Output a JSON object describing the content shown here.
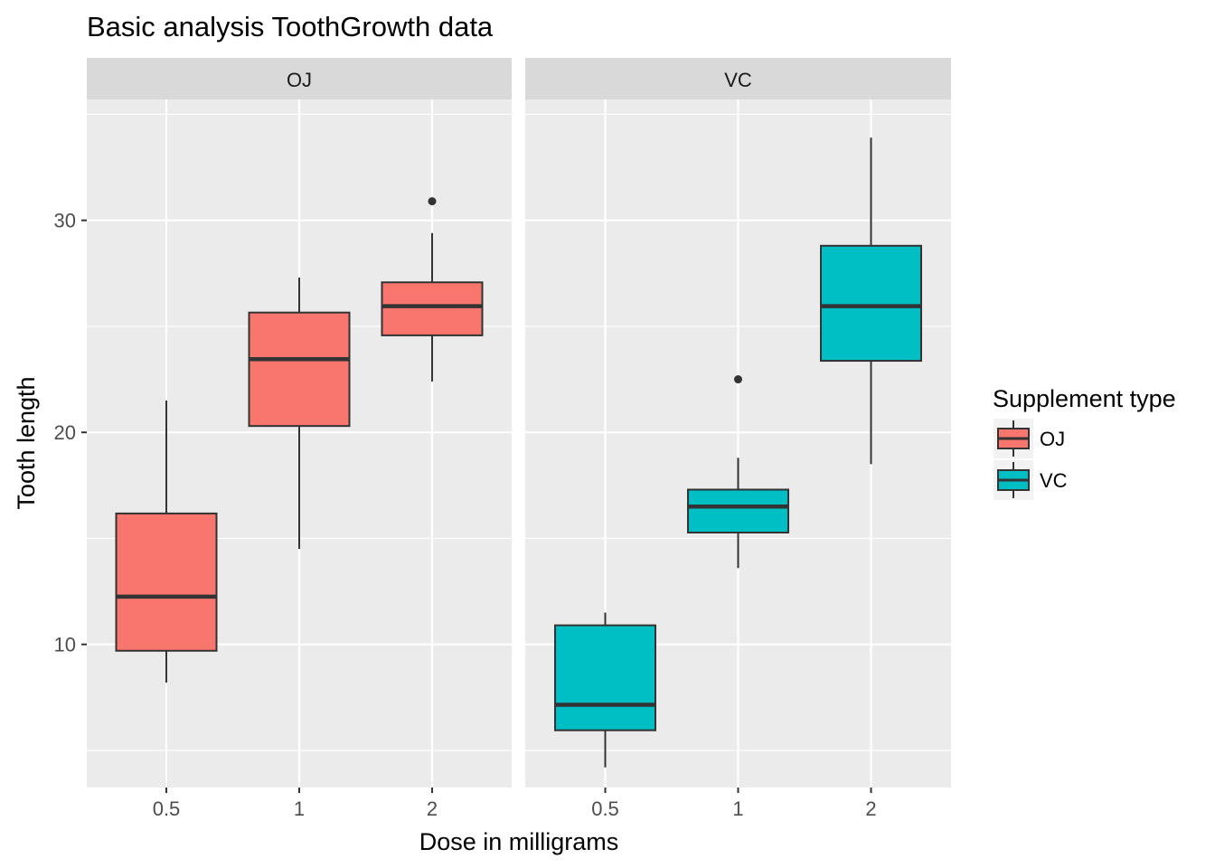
{
  "chart_data": {
    "type": "boxplot",
    "title": "Basic analysis ToothGrowth data",
    "xlabel": "Dose in milligrams",
    "ylabel": "Tooth length",
    "categories": [
      "0.5",
      "1",
      "2"
    ],
    "y_ticks": [
      10,
      20,
      30
    ],
    "ylim": [
      3.25,
      35.7
    ],
    "grid": true,
    "facets": [
      {
        "label": "OJ",
        "fill": "#F8766D",
        "boxes": [
          {
            "dose": "0.5",
            "whisker_low": 8.2,
            "q1": 9.7,
            "median": 12.25,
            "q3": 16.175,
            "whisker_high": 21.5,
            "outliers": []
          },
          {
            "dose": "1",
            "whisker_low": 14.5,
            "q1": 20.3,
            "median": 23.45,
            "q3": 25.65,
            "whisker_high": 27.3,
            "outliers": []
          },
          {
            "dose": "2",
            "whisker_low": 22.4,
            "q1": 24.575,
            "median": 25.95,
            "q3": 27.075,
            "whisker_high": 29.4,
            "outliers": [
              30.9
            ]
          }
        ]
      },
      {
        "label": "VC",
        "fill": "#00BFC4",
        "boxes": [
          {
            "dose": "0.5",
            "whisker_low": 4.2,
            "q1": 5.95,
            "median": 7.15,
            "q3": 10.9,
            "whisker_high": 11.5,
            "outliers": []
          },
          {
            "dose": "1",
            "whisker_low": 13.6,
            "q1": 15.275,
            "median": 16.5,
            "q3": 17.3,
            "whisker_high": 18.8,
            "outliers": [
              22.5
            ]
          },
          {
            "dose": "2",
            "whisker_low": 18.5,
            "q1": 23.375,
            "median": 25.95,
            "q3": 28.8,
            "whisker_high": 33.9,
            "outliers": []
          }
        ]
      }
    ],
    "legend": {
      "title": "Supplement type",
      "position": "right",
      "entries": [
        {
          "label": "OJ",
          "fill": "#F8766D"
        },
        {
          "label": "VC",
          "fill": "#00BFC4"
        }
      ]
    }
  }
}
